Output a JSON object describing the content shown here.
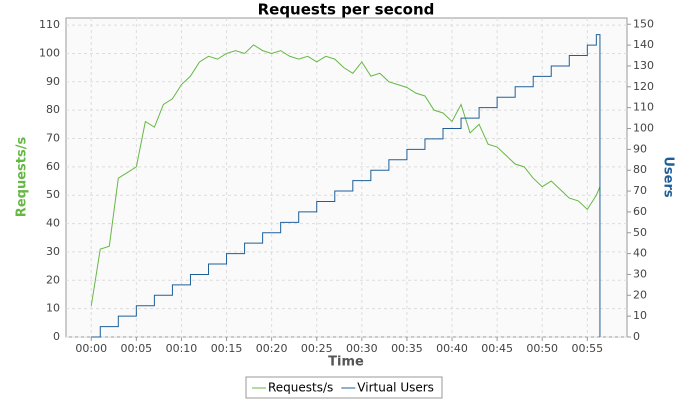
{
  "chart_data": {
    "type": "line",
    "title": "Requests per second",
    "x_label": "Time",
    "y_label": "Requests/s",
    "y2_label": "Users",
    "x": [
      0,
      1,
      2,
      3,
      4,
      5,
      6,
      7,
      8,
      9,
      10,
      11,
      12,
      13,
      14,
      15,
      16,
      17,
      18,
      19,
      20,
      21,
      22,
      23,
      24,
      25,
      26,
      27,
      28,
      29,
      30,
      31,
      32,
      33,
      34,
      35,
      36,
      37,
      38,
      39,
      40,
      41,
      42,
      43,
      44,
      45,
      46,
      47,
      48,
      49,
      50,
      51,
      52,
      53,
      54,
      55,
      56,
      56.4
    ],
    "series": [
      {
        "name": "Requests/s",
        "color": "#66b845",
        "values": [
          11,
          31,
          32,
          56,
          58,
          60,
          76,
          74,
          82,
          84,
          89,
          92,
          97,
          99,
          98,
          100,
          101,
          100,
          103,
          101,
          100,
          101,
          99,
          98,
          99,
          97,
          99,
          98,
          95,
          93,
          97,
          92,
          93,
          90,
          89,
          88,
          86,
          85,
          80,
          79,
          76,
          82,
          72,
          75,
          68,
          67,
          64,
          61,
          60,
          56,
          53,
          55,
          52,
          49,
          48,
          45,
          50,
          53
        ]
      },
      {
        "name": "Virtual Users",
        "color": "#1f5f99",
        "axis": "y2",
        "step": true,
        "values": [
          0,
          5,
          5,
          10,
          10,
          15,
          15,
          20,
          20,
          25,
          25,
          30,
          30,
          35,
          35,
          40,
          40,
          45,
          45,
          50,
          50,
          55,
          55,
          60,
          60,
          65,
          65,
          70,
          70,
          75,
          75,
          80,
          80,
          85,
          85,
          90,
          90,
          95,
          95,
          100,
          100,
          105,
          105,
          110,
          110,
          115,
          115,
          120,
          120,
          125,
          125,
          130,
          130,
          135,
          135,
          140,
          145,
          0
        ]
      }
    ],
    "xlim": [
      -2.8,
      59.4
    ],
    "xticks": [
      {
        "value": 0,
        "label": "00:00"
      },
      {
        "value": 5,
        "label": "00:05"
      },
      {
        "value": 10,
        "label": "00:10"
      },
      {
        "value": 15,
        "label": "00:15"
      },
      {
        "value": 20,
        "label": "00:20"
      },
      {
        "value": 25,
        "label": "00:25"
      },
      {
        "value": 30,
        "label": "00:30"
      },
      {
        "value": 35,
        "label": "00:35"
      },
      {
        "value": 40,
        "label": "00:40"
      },
      {
        "value": 45,
        "label": "00:45"
      },
      {
        "value": 50,
        "label": "00:50"
      },
      {
        "value": 55,
        "label": "00:55"
      }
    ],
    "ylim": [
      0,
      112.5
    ],
    "yticks": [
      0,
      10,
      20,
      30,
      40,
      50,
      60,
      70,
      80,
      90,
      100,
      110
    ],
    "y2lim": [
      0,
      153
    ],
    "y2ticks": [
      0,
      10,
      20,
      30,
      40,
      50,
      60,
      70,
      80,
      90,
      100,
      110,
      120,
      130,
      140,
      150
    ],
    "grid": true
  }
}
